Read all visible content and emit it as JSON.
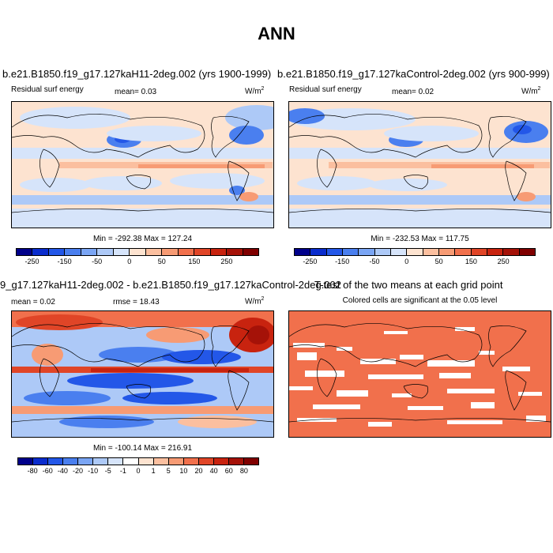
{
  "figure": {
    "title": "ANN"
  },
  "panels": [
    {
      "title": "b.e21.B1850.f19_g17.127kaH11-2deg.002 (yrs 1900-1999)",
      "left_label": "Residual surf energy",
      "mean_label": "mean=  0.03",
      "unit_base": "W/m",
      "unit_exp": "2",
      "minmax": "Min = -292.38 Max = 127.24",
      "colorbar": {
        "colors": [
          "#00008a",
          "#0a2ccd",
          "#2357e8",
          "#4a7fef",
          "#7aa5f4",
          "#adc9f7",
          "#d6e4fa",
          "#fde3d0",
          "#fbbf9f",
          "#f79b74",
          "#f1704c",
          "#e04527",
          "#c8230f",
          "#a51208",
          "#800000"
        ],
        "labels": [
          "-250",
          "-150",
          "-50",
          "0",
          "50",
          "150",
          "250"
        ]
      }
    },
    {
      "title": "b.e21.B1850.f19_g17.127kaControl-2deg.002 (yrs 900-999)",
      "left_label": "Residual surf energy",
      "mean_label": "mean=  0.02",
      "unit_base": "W/m",
      "unit_exp": "2",
      "minmax": "Min = -232.53 Max = 117.75",
      "colorbar": {
        "colors": [
          "#00008a",
          "#0a2ccd",
          "#2357e8",
          "#4a7fef",
          "#7aa5f4",
          "#adc9f7",
          "#d6e4fa",
          "#fde3d0",
          "#fbbf9f",
          "#f79b74",
          "#f1704c",
          "#e04527",
          "#c8230f",
          "#a51208",
          "#800000"
        ],
        "labels": [
          "-250",
          "-150",
          "-50",
          "0",
          "50",
          "150",
          "250"
        ]
      }
    },
    {
      "title": "9_g17.127kaH11-2deg.002 - b.e21.B1850.f19_g17.127kaControl-2deg.002",
      "left_label": "mean =  0.02",
      "mean_label": "rmse =  18.43",
      "unit_base": "W/m",
      "unit_exp": "2",
      "minmax": "Min = -100.14 Max = 216.91",
      "colorbar": {
        "colors": [
          "#00008a",
          "#0a2ccd",
          "#2357e8",
          "#4a7fef",
          "#7aa5f4",
          "#adc9f7",
          "#d6e4fa",
          "#ffffff",
          "#fde3d0",
          "#fbbf9f",
          "#f79b74",
          "#f1704c",
          "#e04527",
          "#c8230f",
          "#a51208",
          "#800000"
        ],
        "labels": [
          "-80",
          "-60",
          "-40",
          "-20",
          "-10",
          "-5",
          "-1",
          "0",
          "1",
          "5",
          "10",
          "20",
          "40",
          "60",
          "80"
        ]
      }
    },
    {
      "title": "T-test of the two means at each grid point",
      "left_label": "Colored cells are significant at the 0.05 level"
    }
  ]
}
